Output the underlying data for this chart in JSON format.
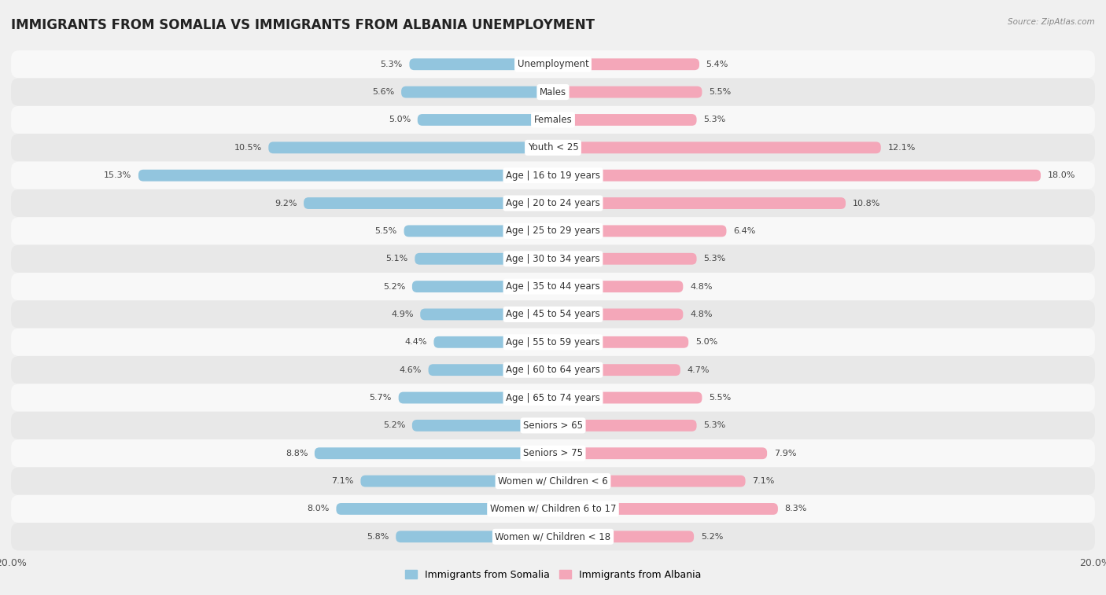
{
  "title": "IMMIGRANTS FROM SOMALIA VS IMMIGRANTS FROM ALBANIA UNEMPLOYMENT",
  "source": "Source: ZipAtlas.com",
  "categories": [
    "Unemployment",
    "Males",
    "Females",
    "Youth < 25",
    "Age | 16 to 19 years",
    "Age | 20 to 24 years",
    "Age | 25 to 29 years",
    "Age | 30 to 34 years",
    "Age | 35 to 44 years",
    "Age | 45 to 54 years",
    "Age | 55 to 59 years",
    "Age | 60 to 64 years",
    "Age | 65 to 74 years",
    "Seniors > 65",
    "Seniors > 75",
    "Women w/ Children < 6",
    "Women w/ Children 6 to 17",
    "Women w/ Children < 18"
  ],
  "somalia_values": [
    5.3,
    5.6,
    5.0,
    10.5,
    15.3,
    9.2,
    5.5,
    5.1,
    5.2,
    4.9,
    4.4,
    4.6,
    5.7,
    5.2,
    8.8,
    7.1,
    8.0,
    5.8
  ],
  "albania_values": [
    5.4,
    5.5,
    5.3,
    12.1,
    18.0,
    10.8,
    6.4,
    5.3,
    4.8,
    4.8,
    5.0,
    4.7,
    5.5,
    5.3,
    7.9,
    7.1,
    8.3,
    5.2
  ],
  "somalia_color": "#92c5de",
  "albania_color": "#f4a7b9",
  "somalia_label": "Immigrants from Somalia",
  "albania_label": "Immigrants from Albania",
  "max_value": 20.0,
  "background_color": "#f0f0f0",
  "row_color_light": "#f8f8f8",
  "row_color_dark": "#e8e8e8",
  "title_fontsize": 12,
  "label_fontsize": 8.5,
  "value_fontsize": 8,
  "tick_fontsize": 9
}
